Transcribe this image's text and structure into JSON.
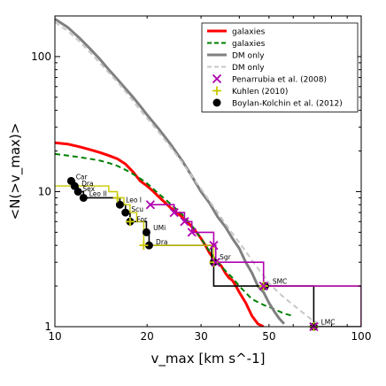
{
  "chart_data": {
    "type": "line",
    "title": "",
    "xlabel": "v_max [km s^-1]",
    "ylabel": "<N(>v_max)>",
    "xscale": "log",
    "yscale": "log",
    "xlim": [
      10,
      100
    ],
    "ylim": [
      1,
      200
    ],
    "x_ticks": [
      10,
      20,
      30,
      50,
      100
    ],
    "y_ticks": [
      1,
      10,
      100
    ],
    "grid": false,
    "legend_position": "top-right",
    "series": [
      {
        "name": "galaxies",
        "style": "solid",
        "color": "#ff0000",
        "width": 3,
        "x": [
          10,
          11,
          12,
          13,
          14,
          15,
          16,
          17,
          18,
          19,
          20,
          21,
          22,
          23,
          24,
          25,
          26,
          27,
          28,
          29,
          30,
          31,
          32,
          33,
          34,
          35,
          36,
          37,
          38,
          39,
          40,
          42,
          44,
          46,
          48
        ],
        "y": [
          23,
          22.5,
          21.5,
          20.5,
          19.5,
          18.5,
          17.5,
          16,
          14,
          12,
          11,
          10,
          9,
          8.2,
          7.5,
          7,
          6.5,
          6,
          5.5,
          5,
          4.5,
          4,
          3.5,
          3.2,
          3,
          2.8,
          2.5,
          2.3,
          2.2,
          2,
          1.8,
          1.5,
          1.2,
          1.05,
          1
        ]
      },
      {
        "name": "galaxies",
        "style": "dashed",
        "color": "#008000",
        "width": 2,
        "x": [
          10,
          11,
          12,
          13,
          14,
          15,
          16,
          17,
          18,
          19,
          20,
          22,
          24,
          26,
          28,
          30,
          32,
          34,
          36,
          38,
          40,
          44,
          48,
          52,
          56,
          60
        ],
        "y": [
          19,
          18.5,
          18,
          17.5,
          17,
          16.3,
          15.5,
          14.5,
          13.5,
          12.5,
          11.5,
          9.5,
          8,
          6.8,
          5.6,
          4.5,
          3.6,
          3,
          2.6,
          2.3,
          2,
          1.6,
          1.45,
          1.35,
          1.25,
          1.2
        ]
      },
      {
        "name": "DM only",
        "style": "solid",
        "color": "#808080",
        "width": 3,
        "x": [
          10,
          11,
          12,
          13,
          14,
          15,
          16,
          17,
          18,
          19,
          20,
          22,
          24,
          26,
          28,
          30,
          32,
          34,
          36,
          38,
          40,
          42,
          44,
          46,
          48,
          50,
          52,
          54,
          56
        ],
        "y": [
          190,
          165,
          138,
          115,
          96,
          80,
          68,
          58,
          50,
          43,
          37,
          28.5,
          22,
          17,
          13,
          10,
          8.2,
          6.5,
          5.5,
          4.5,
          3.8,
          3,
          2.5,
          2,
          1.8,
          1.5,
          1.3,
          1.15,
          1.05
        ]
      },
      {
        "name": "DM only",
        "style": "dashed",
        "color": "#c8c8c8",
        "width": 2,
        "x": [
          10,
          11,
          12,
          13,
          14,
          15,
          16,
          17,
          18,
          19,
          20,
          22,
          24,
          26,
          28,
          30,
          32,
          34,
          36,
          38,
          40,
          42,
          44,
          46,
          48,
          50,
          55,
          60,
          65,
          70,
          75
        ],
        "y": [
          180,
          155,
          130,
          108,
          90,
          76,
          65,
          55,
          47,
          40,
          35,
          27,
          21,
          16.5,
          13,
          10.5,
          8.5,
          7,
          5.8,
          4.9,
          4.2,
          3.6,
          3.1,
          2.7,
          2.4,
          2.1,
          1.7,
          1.45,
          1.25,
          1.1,
          1.02
        ]
      }
    ],
    "step_series": [
      {
        "name": "Boylan-Kolchin et al. (2012)",
        "color": "#000000",
        "width": 1.6,
        "x": [
          11.3,
          11.6,
          11.9,
          12.4,
          16.3,
          17.0,
          17.6,
          19.9,
          20.3,
          32.5,
          33.0,
          48.5,
          70.0,
          100
        ],
        "y": [
          12,
          11,
          10,
          9,
          8,
          7,
          6,
          5,
          4,
          3,
          2,
          2,
          1,
          1
        ]
      },
      {
        "name": "Kuhlen (2010)",
        "color": "#c8c800",
        "width": 1.4,
        "x": [
          10,
          15,
          16,
          16.8,
          17.6,
          18.5,
          19.5,
          33,
          48,
          100
        ],
        "y": [
          11,
          10,
          9,
          8,
          7,
          6,
          4,
          3,
          2,
          1
        ]
      },
      {
        "name": "Penarrubia et al. (2008)",
        "color": "#b000b0",
        "width": 1.6,
        "x": [
          20.5,
          24.5,
          26.5,
          28,
          33,
          33.5,
          48,
          100
        ],
        "y": [
          8,
          7,
          6,
          5,
          4,
          3,
          2,
          1
        ]
      }
    ],
    "markers": [
      {
        "name": "Boylan-Kolchin et al. (2012)",
        "symbol": "circle",
        "color": "#000000",
        "points": [
          [
            11.3,
            12
          ],
          [
            11.6,
            11
          ],
          [
            11.9,
            10
          ],
          [
            12.4,
            9
          ],
          [
            16.3,
            8
          ],
          [
            17.0,
            7
          ],
          [
            17.6,
            6
          ],
          [
            19.9,
            5
          ],
          [
            20.3,
            4
          ],
          [
            33.0,
            3
          ],
          [
            48.5,
            2
          ],
          [
            70.0,
            1
          ]
        ]
      },
      {
        "name": "Kuhlen (2010)",
        "symbol": "plus",
        "color": "#c8c800",
        "points": [
          [
            16.0,
            9
          ],
          [
            17.6,
            6
          ],
          [
            19.5,
            4
          ],
          [
            33.0,
            3
          ],
          [
            48.0,
            2
          ],
          [
            70.0,
            1
          ]
        ]
      },
      {
        "name": "Penarrubia et al. (2008)",
        "symbol": "x",
        "color": "#b000b0",
        "points": [
          [
            20.5,
            8
          ],
          [
            24.5,
            7
          ],
          [
            26.5,
            6
          ],
          [
            28,
            5
          ],
          [
            33,
            4
          ],
          [
            33.5,
            3
          ],
          [
            48,
            2
          ],
          [
            70,
            1
          ]
        ]
      }
    ],
    "annotations": [
      {
        "text": "Car",
        "x": 11.4,
        "y": 12.2
      },
      {
        "text": "Dra",
        "x": 11.9,
        "y": 10.9
      },
      {
        "text": "Sex",
        "x": 12.0,
        "y": 9.9
      },
      {
        "text": "Leo II",
        "x": 12.6,
        "y": 9.1
      },
      {
        "text": "Leo I",
        "x": 16.6,
        "y": 8.2
      },
      {
        "text": "Scu",
        "x": 17.3,
        "y": 7.0
      },
      {
        "text": "For",
        "x": 18.0,
        "y": 5.9
      },
      {
        "text": "UMi",
        "x": 20.4,
        "y": 5.1
      },
      {
        "text": "Dra",
        "x": 20.8,
        "y": 4.0
      },
      {
        "text": "Sgr",
        "x": 33.6,
        "y": 3.1
      },
      {
        "text": "SMC",
        "x": 50.0,
        "y": 2.05
      },
      {
        "text": "LMC",
        "x": 72.0,
        "y": 1.02
      }
    ],
    "legend": [
      {
        "label": "galaxies",
        "kind": "line",
        "color": "#ff0000",
        "dash": false,
        "width": 3
      },
      {
        "label": "galaxies",
        "kind": "line",
        "color": "#008000",
        "dash": true,
        "width": 2
      },
      {
        "label": "DM only",
        "kind": "line",
        "color": "#808080",
        "dash": false,
        "width": 3
      },
      {
        "label": "DM only",
        "kind": "line",
        "color": "#c8c8c8",
        "dash": true,
        "width": 2
      },
      {
        "label": "Penarrubia et al. (2008)",
        "kind": "x",
        "color": "#b000b0"
      },
      {
        "label": "Kuhlen (2010)",
        "kind": "plus",
        "color": "#c8c800"
      },
      {
        "label": "Boylan-Kolchin et al. (2012)",
        "kind": "circle",
        "color": "#000000"
      }
    ]
  }
}
